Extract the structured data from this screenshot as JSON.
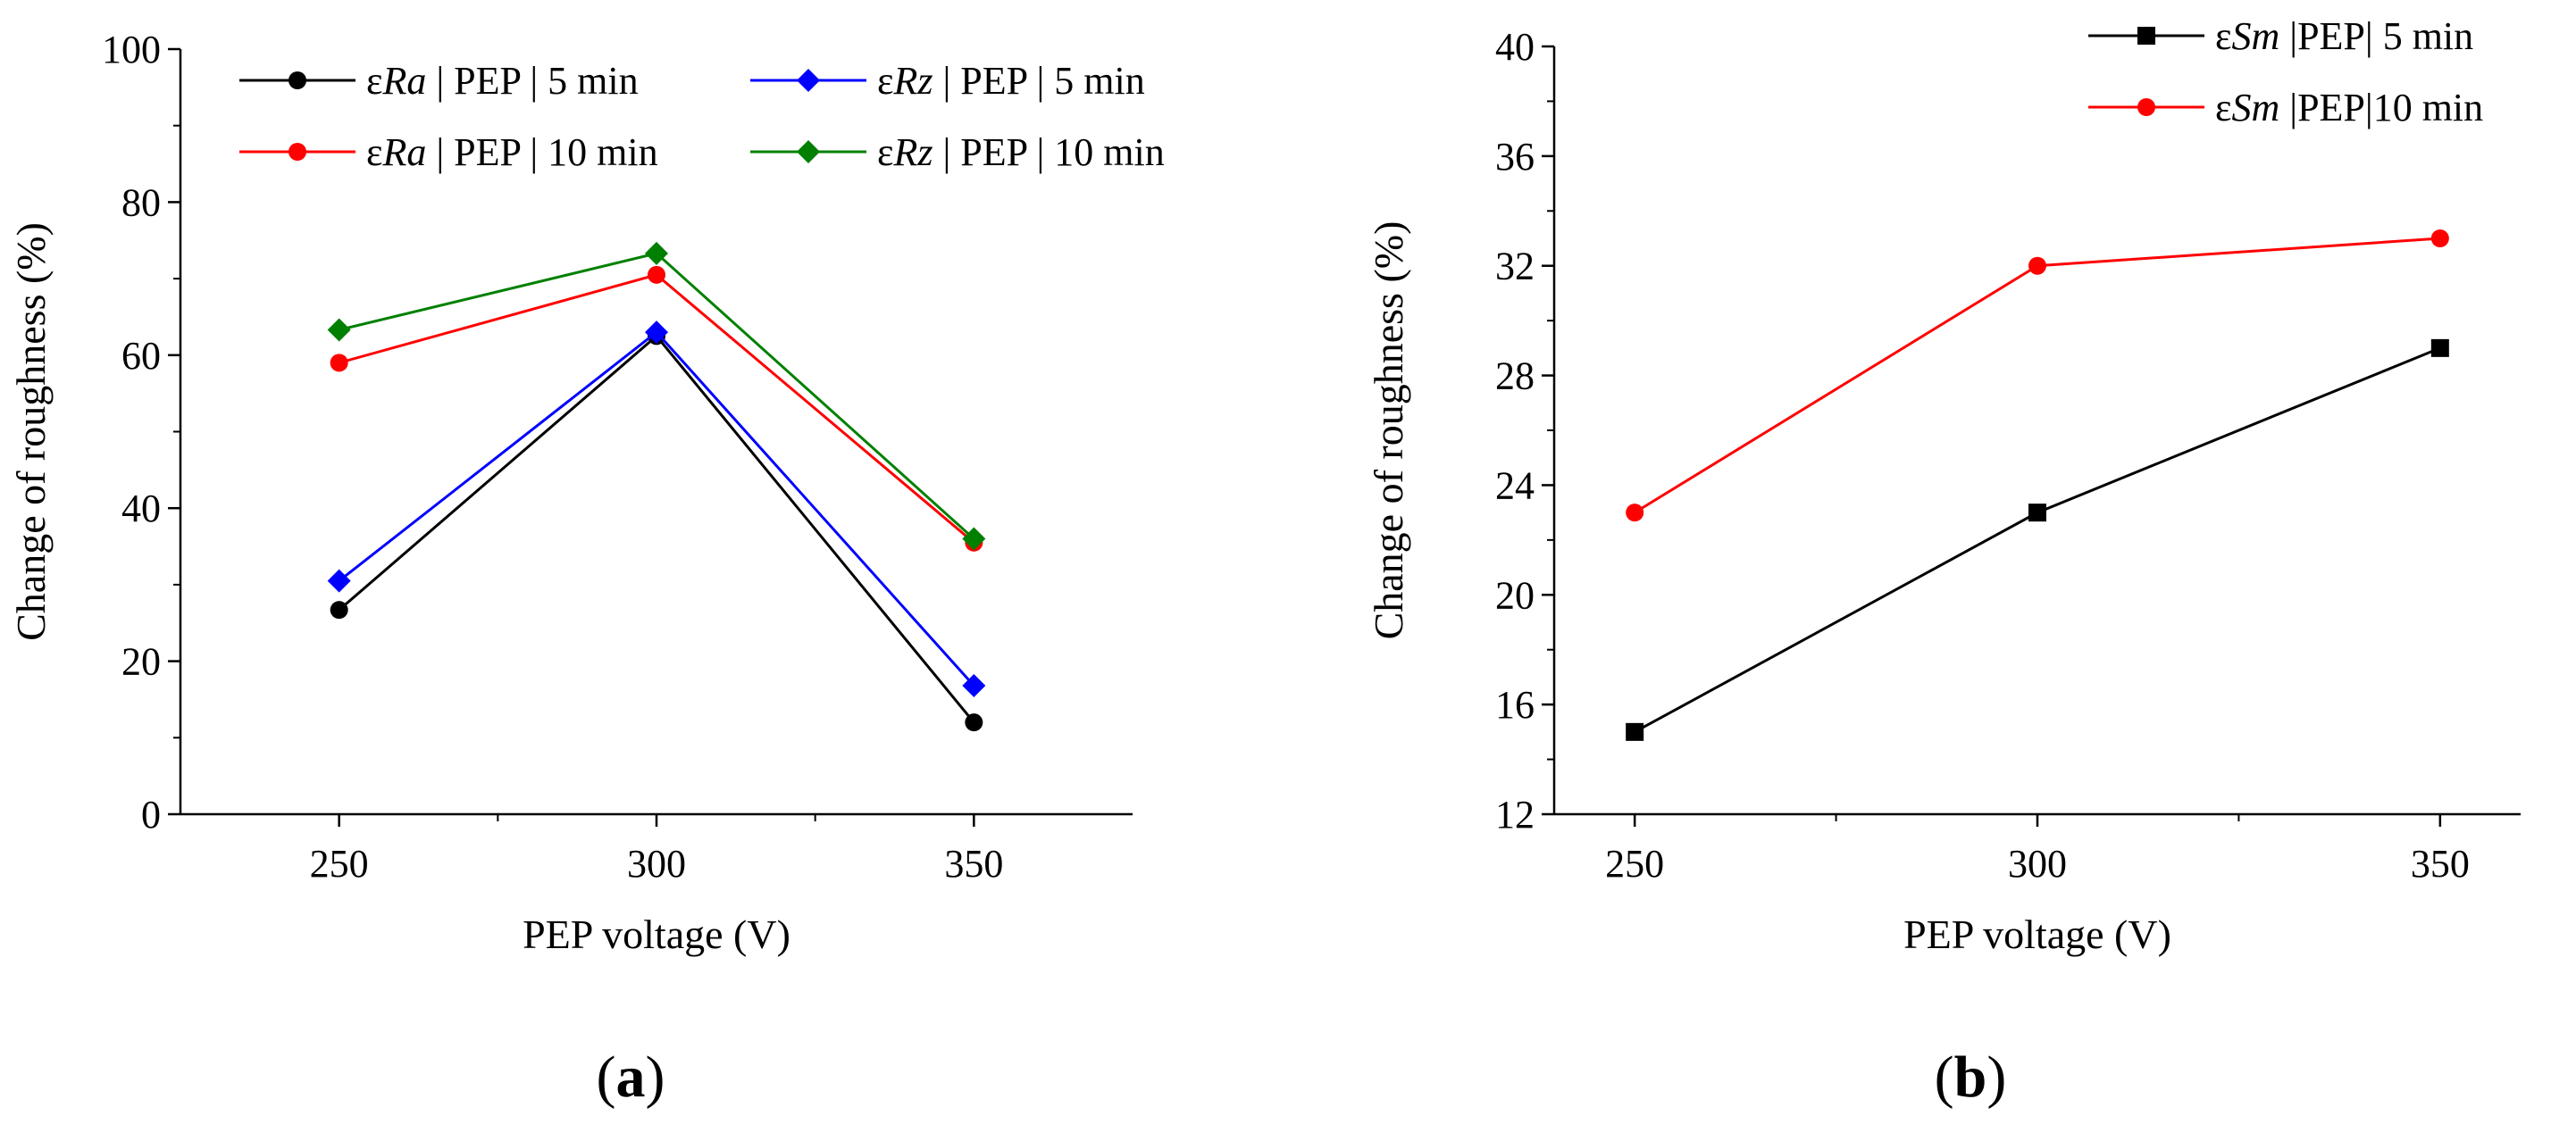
{
  "chart_data": [
    {
      "type": "line",
      "panel_label": "a",
      "xlabel": "PEP voltage (V)",
      "ylabel": "Change of roughness (%)",
      "x": [
        250,
        300,
        350
      ],
      "xlim": [
        225,
        375
      ],
      "ylim": [
        0,
        100
      ],
      "yticks": [
        0,
        20,
        40,
        60,
        80,
        100
      ],
      "legend_position": "top",
      "series": [
        {
          "name": "εRa | PEP | 5 min",
          "prefix": "ε",
          "sym": "Ra",
          "rest": " | PEP | 5 min",
          "values": [
            26.7,
            62.5,
            12.0
          ],
          "color": "#000000",
          "marker": "circle"
        },
        {
          "name": "εRz | PEP | 5 min",
          "prefix": "ε",
          "sym": "Rz",
          "rest": " | PEP | 5 min",
          "values": [
            30.5,
            63.0,
            16.8
          ],
          "color": "#0000ff",
          "marker": "diamond"
        },
        {
          "name": "εRa | PEP | 10 min",
          "prefix": "ε",
          "sym": "Ra",
          "rest": " | PEP | 10 min",
          "values": [
            59.0,
            70.5,
            35.5
          ],
          "color": "#ff0000",
          "marker": "circle"
        },
        {
          "name": "εRz | PEP | 10 min",
          "prefix": "ε",
          "sym": "Rz",
          "rest": " | PEP | 10 min",
          "values": [
            63.3,
            73.3,
            36.0
          ],
          "color": "#008000",
          "marker": "diamond"
        }
      ]
    },
    {
      "type": "line",
      "panel_label": "b",
      "xlabel": "PEP voltage (V)",
      "ylabel": "Change of roughness (%)",
      "x": [
        250,
        300,
        350
      ],
      "xlim": [
        240,
        360
      ],
      "ylim": [
        12,
        40
      ],
      "yticks": [
        12,
        16,
        20,
        24,
        28,
        32,
        36,
        40
      ],
      "legend_position": "top-right",
      "series": [
        {
          "name": "εSm |PEP| 5 min",
          "prefix": "ε",
          "sym": "Sm",
          "rest": " |PEP| 5 min",
          "values": [
            15,
            23,
            29
          ],
          "color": "#000000",
          "marker": "square"
        },
        {
          "name": "εSm |PEP|10 min",
          "prefix": "ε",
          "sym": "Sm",
          "rest": " |PEP|10 min",
          "values": [
            23,
            32,
            33
          ],
          "color": "#ff0000",
          "marker": "circle"
        }
      ]
    }
  ]
}
